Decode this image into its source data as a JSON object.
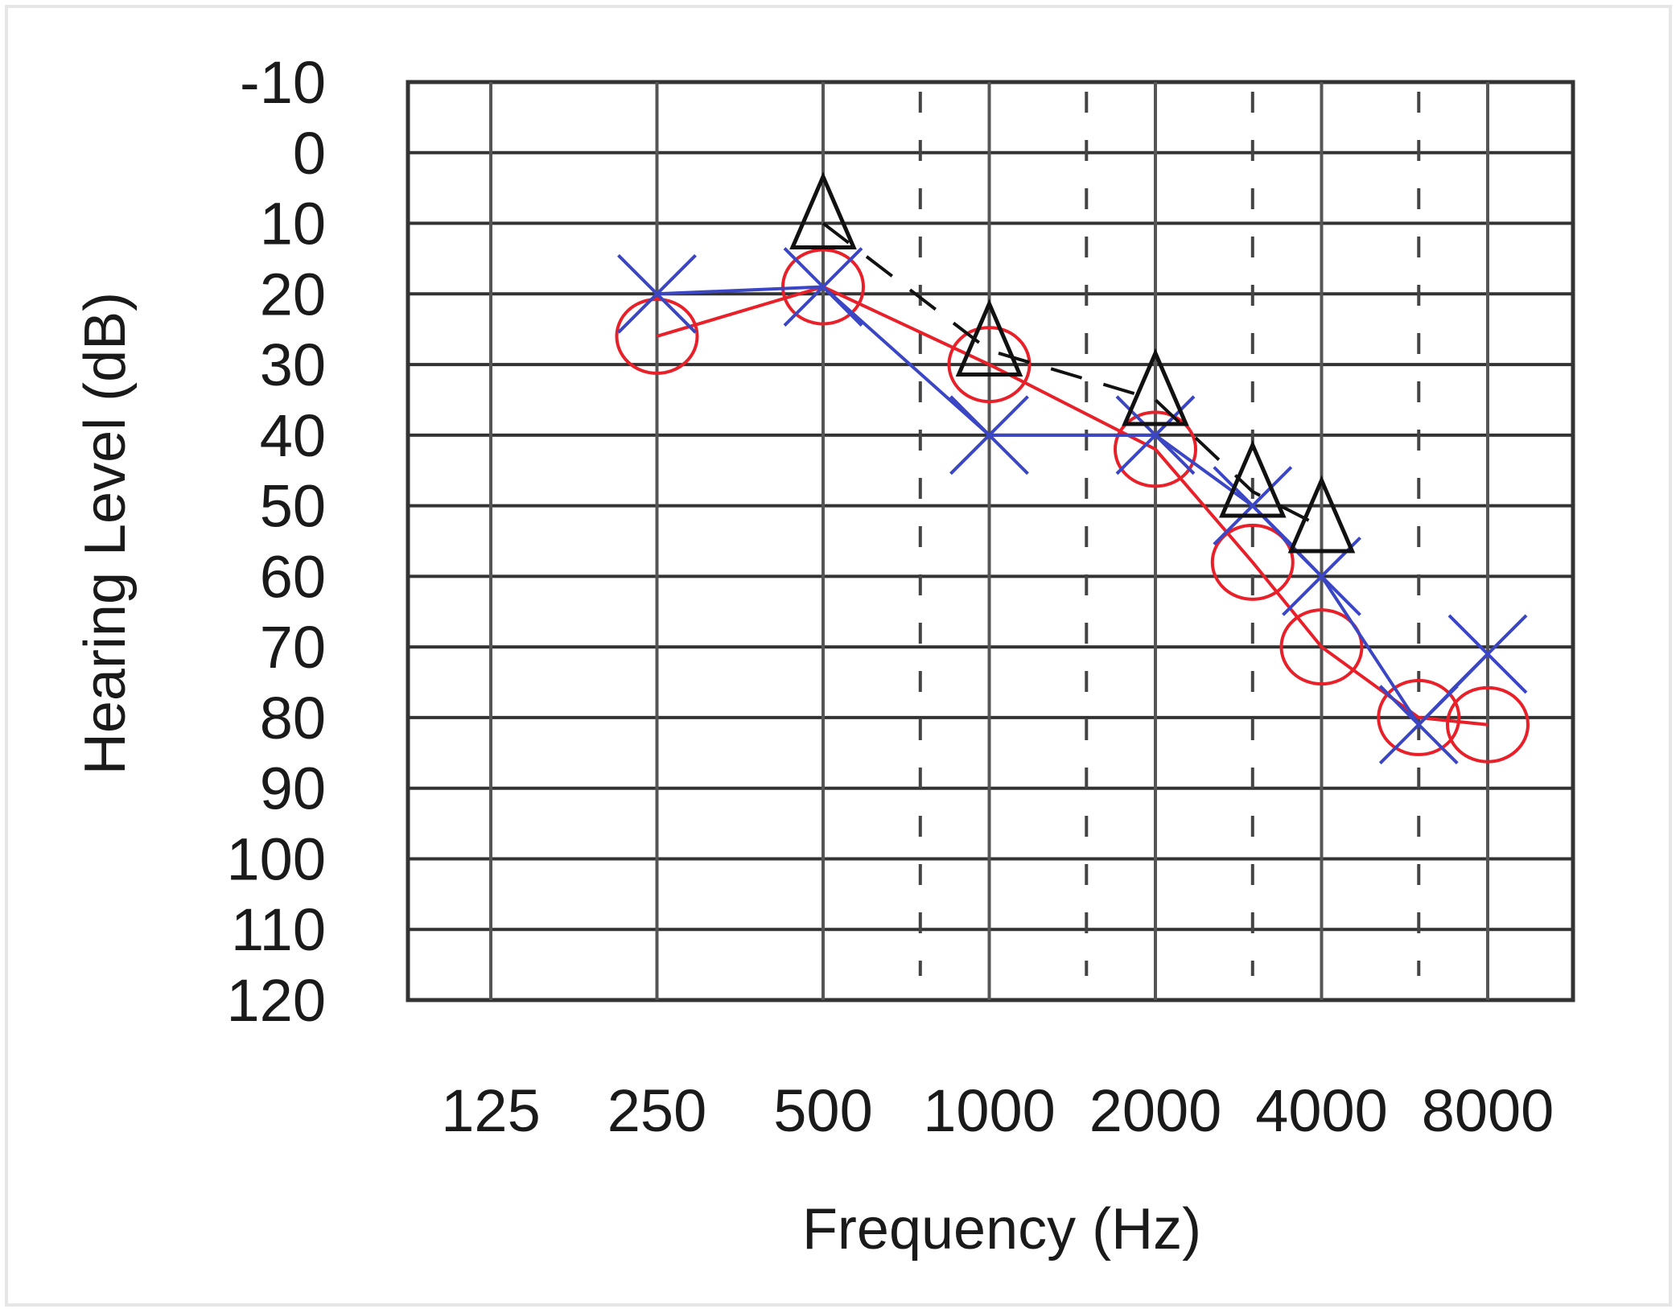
{
  "chart_data": {
    "type": "line",
    "title": "",
    "xlabel": "Frequency (Hz)",
    "ylabel": "Hearing Level (dB)",
    "x_scale": "log2",
    "y_inverted": true,
    "ylim": [
      -10,
      120
    ],
    "y_ticks": [
      "-10",
      "0",
      "10",
      "20",
      "30",
      "40",
      "50",
      "60",
      "70",
      "80",
      "90",
      "100",
      "110",
      "120"
    ],
    "x_ticks": [
      {
        "value": 125,
        "label": "125"
      },
      {
        "value": 250,
        "label": "250"
      },
      {
        "value": 500,
        "label": "500"
      },
      {
        "value": 1000,
        "label": "1000"
      },
      {
        "value": 2000,
        "label": "2000"
      },
      {
        "value": 4000,
        "label": "4000"
      },
      {
        "value": 8000,
        "label": "8000"
      }
    ],
    "intermediate_frequencies": [
      750,
      1500,
      3000,
      6000
    ],
    "grid": true,
    "legend": "none",
    "series": [
      {
        "marker": "circle",
        "color": "#e8202a",
        "line": "solid",
        "points": [
          [
            250,
            26
          ],
          [
            500,
            19
          ],
          [
            1000,
            30
          ],
          [
            2000,
            42
          ],
          [
            3000,
            58
          ],
          [
            4000,
            70
          ],
          [
            6000,
            80
          ],
          [
            8000,
            81
          ]
        ]
      },
      {
        "marker": "x",
        "color": "#3b46c4",
        "line": "solid",
        "points": [
          [
            250,
            20
          ],
          [
            500,
            19
          ],
          [
            1000,
            40
          ],
          [
            2000,
            40
          ],
          [
            3000,
            50
          ],
          [
            4000,
            60
          ],
          [
            6000,
            81
          ],
          [
            8000,
            71
          ]
        ]
      },
      {
        "marker": "triangle",
        "color": "#111111",
        "line": "dashed",
        "points": [
          [
            500,
            10
          ],
          [
            1000,
            28
          ],
          [
            2000,
            35
          ],
          [
            3000,
            48
          ],
          [
            4000,
            53
          ]
        ]
      }
    ]
  }
}
